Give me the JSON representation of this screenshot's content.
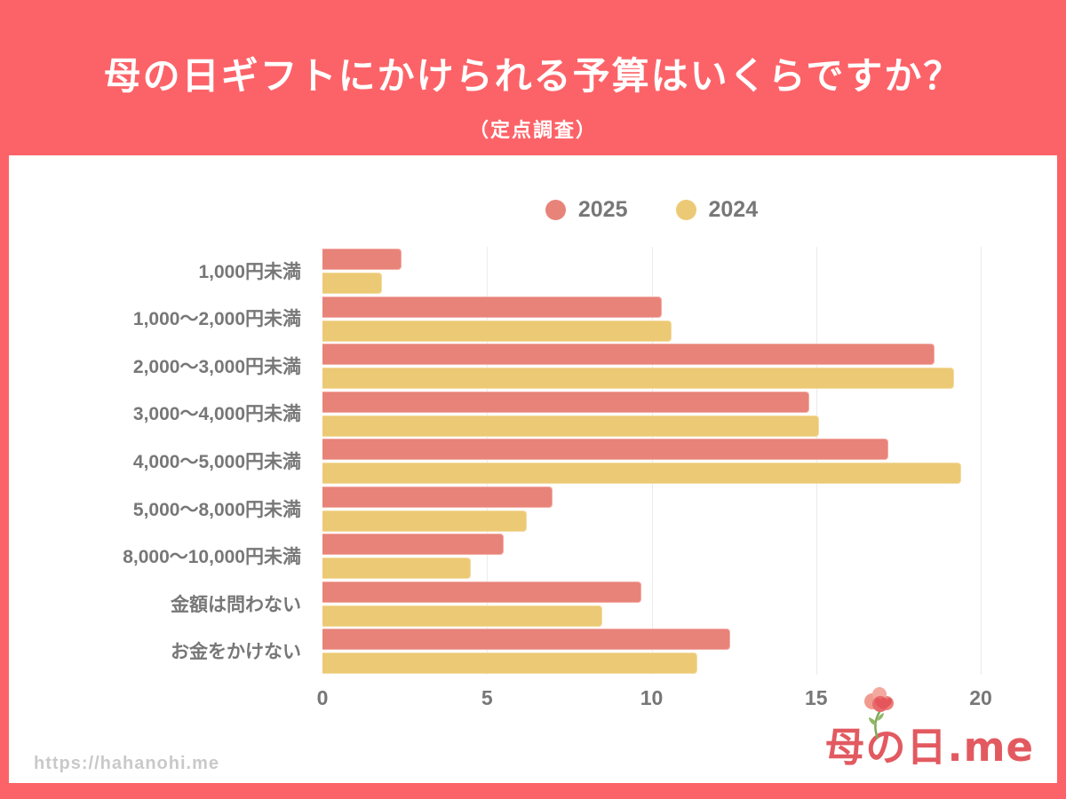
{
  "header": {
    "title": "母の日ギフトにかけられる予算はいくらですか？",
    "subtitle": "（定点調査）"
  },
  "chart_data": {
    "type": "bar",
    "orientation": "horizontal",
    "categories": [
      "1,000円未満",
      "1,000〜2,000円未満",
      "2,000〜3,000円未満",
      "3,000〜4,000円未満",
      "4,000〜5,000円未満",
      "5,000〜8,000円未満",
      "8,000〜10,000円未満",
      "金額は問わない",
      "お金をかけない"
    ],
    "series": [
      {
        "name": "2025",
        "color": "#E8837A",
        "border_color": "#F3ACA5",
        "values": [
          2.4,
          10.3,
          18.6,
          14.8,
          17.2,
          7.0,
          5.5,
          9.7,
          12.4
        ]
      },
      {
        "name": "2024",
        "color": "#ECC974",
        "border_color": "#F3DCA2",
        "values": [
          1.8,
          10.6,
          19.2,
          15.1,
          19.4,
          6.2,
          4.5,
          8.5,
          11.4
        ]
      }
    ],
    "xlim": [
      0,
      20
    ],
    "x_ticks": [
      0,
      5,
      10,
      15,
      20
    ],
    "legend_position": "top",
    "grid": true
  },
  "footer": {
    "url": "https://hahanohi.me",
    "logo_text": "母の日.me"
  },
  "colors": {
    "banner": "#FC6368",
    "card": "#FFFFFF",
    "text_gray": "#777777",
    "grid": "#EBEBEB",
    "url_gray": "#C9C9C9",
    "logo": "#E25A60"
  }
}
